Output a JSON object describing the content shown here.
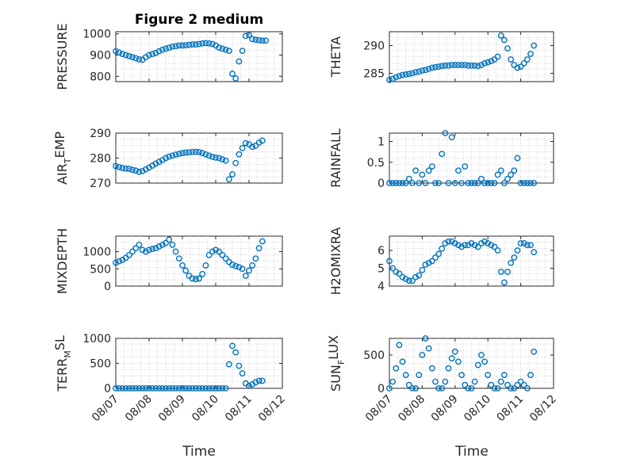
{
  "figure": {
    "title": "Figure 2 medium",
    "marker_color": "#0072BD"
  },
  "chart_data": [
    {
      "type": "scatter",
      "id": "pressure",
      "ylabel": {
        "main": "PRESSURE"
      },
      "ylim": [
        775,
        1010
      ],
      "yticks": [
        800,
        900,
        1000
      ],
      "xlim": [
        "2016-08-07",
        "2016-08-12"
      ],
      "xticks": [
        "08/07",
        "08/08",
        "08/09",
        "08/10",
        "08/11",
        "08/12"
      ],
      "x": [
        0.0,
        0.1,
        0.2,
        0.3,
        0.4,
        0.5,
        0.6,
        0.7,
        0.8,
        0.9,
        1.0,
        1.1,
        1.2,
        1.3,
        1.4,
        1.5,
        1.6,
        1.7,
        1.8,
        1.9,
        2.0,
        2.1,
        2.2,
        2.3,
        2.4,
        2.5,
        2.6,
        2.7,
        2.8,
        2.9,
        3.0,
        3.1,
        3.2,
        3.3,
        3.4,
        3.5,
        3.6,
        3.7,
        3.8,
        3.9,
        4.0,
        4.1,
        4.2,
        4.3,
        4.4,
        4.5
      ],
      "y": [
        918,
        912,
        905,
        900,
        895,
        890,
        885,
        880,
        878,
        890,
        900,
        905,
        910,
        918,
        925,
        930,
        935,
        940,
        942,
        945,
        945,
        946,
        948,
        950,
        950,
        952,
        955,
        956,
        955,
        952,
        945,
        935,
        930,
        925,
        920,
        812,
        790,
        870,
        920,
        990,
        995,
        975,
        972,
        970,
        968,
        968
      ]
    },
    {
      "type": "scatter",
      "id": "theta",
      "ylabel": {
        "main": "THETA"
      },
      "ylim": [
        283.5,
        292.5
      ],
      "yticks": [
        285,
        290
      ],
      "xlim": [
        "2016-08-07",
        "2016-08-12"
      ],
      "xticks": [
        "08/07",
        "08/08",
        "08/09",
        "08/10",
        "08/11",
        "08/12"
      ],
      "x": [
        0.0,
        0.1,
        0.2,
        0.3,
        0.4,
        0.5,
        0.6,
        0.7,
        0.8,
        0.9,
        1.0,
        1.1,
        1.2,
        1.3,
        1.4,
        1.5,
        1.6,
        1.7,
        1.8,
        1.9,
        2.0,
        2.1,
        2.2,
        2.3,
        2.4,
        2.5,
        2.6,
        2.7,
        2.8,
        2.9,
        3.0,
        3.1,
        3.2,
        3.3,
        3.4,
        3.5,
        3.6,
        3.7,
        3.8,
        3.9,
        4.0,
        4.1,
        4.2,
        4.3,
        4.4
      ],
      "y": [
        283.8,
        284.0,
        284.3,
        284.5,
        284.7,
        284.8,
        284.9,
        285.0,
        285.2,
        285.3,
        285.5,
        285.6,
        285.8,
        286.0,
        286.1,
        286.2,
        286.3,
        286.4,
        286.4,
        286.5,
        286.5,
        286.5,
        286.5,
        286.5,
        286.4,
        286.4,
        286.4,
        286.3,
        286.5,
        286.8,
        287.0,
        287.2,
        287.5,
        288.0,
        291.8,
        291.0,
        289.5,
        287.5,
        286.5,
        286.0,
        286.2,
        286.8,
        287.5,
        288.5,
        290.0
      ]
    },
    {
      "type": "scatter",
      "id": "air_temp",
      "ylabel": {
        "main": "AIR",
        "sub": "T",
        "rest": "EMP"
      },
      "ylim": [
        270,
        290
      ],
      "yticks": [
        270,
        280,
        290
      ],
      "xlim": [
        "2016-08-07",
        "2016-08-12"
      ],
      "xticks": [
        "08/07",
        "08/08",
        "08/09",
        "08/10",
        "08/11",
        "08/12"
      ],
      "x": [
        0.0,
        0.1,
        0.2,
        0.3,
        0.4,
        0.5,
        0.6,
        0.7,
        0.8,
        0.9,
        1.0,
        1.1,
        1.2,
        1.3,
        1.4,
        1.5,
        1.6,
        1.7,
        1.8,
        1.9,
        2.0,
        2.1,
        2.2,
        2.3,
        2.4,
        2.5,
        2.6,
        2.7,
        2.8,
        2.9,
        3.0,
        3.1,
        3.2,
        3.3,
        3.4,
        3.5,
        3.6,
        3.7,
        3.8,
        3.9,
        4.0,
        4.1,
        4.2,
        4.3,
        4.4
      ],
      "y": [
        276.8,
        276.4,
        276.0,
        275.8,
        275.7,
        275.3,
        275.0,
        274.5,
        274.8,
        275.5,
        276.2,
        277.0,
        277.8,
        278.5,
        279.2,
        280.0,
        280.6,
        281.0,
        281.4,
        281.7,
        282.0,
        282.2,
        282.3,
        282.5,
        282.5,
        282.4,
        282.0,
        281.5,
        281.0,
        280.5,
        280.2,
        280.0,
        279.5,
        279.0,
        271.5,
        273.5,
        278.0,
        281.5,
        284.0,
        286.0,
        285.5,
        284.5,
        285.0,
        286.2,
        287.0
      ]
    },
    {
      "type": "scatter",
      "id": "rainfall",
      "ylabel": {
        "main": "RAINFALL"
      },
      "ylim": [
        0,
        1.2
      ],
      "yticks": [
        0,
        0.5,
        1
      ],
      "xlim": [
        "2016-08-07",
        "2016-08-12"
      ],
      "xticks": [
        "08/07",
        "08/08",
        "08/09",
        "08/10",
        "08/11",
        "08/12"
      ],
      "x": [
        0.0,
        0.1,
        0.2,
        0.3,
        0.4,
        0.5,
        0.6,
        0.7,
        0.8,
        0.9,
        1.0,
        1.1,
        1.2,
        1.3,
        1.4,
        1.5,
        1.6,
        1.7,
        1.8,
        1.9,
        2.0,
        2.1,
        2.2,
        2.3,
        2.4,
        2.5,
        2.6,
        2.7,
        2.8,
        2.9,
        3.0,
        3.1,
        3.2,
        3.3,
        3.4,
        3.5,
        3.6,
        3.7,
        3.8,
        3.9,
        4.0,
        4.1,
        4.2,
        4.3,
        4.4
      ],
      "y": [
        0.0,
        0.0,
        0.0,
        0.0,
        0.0,
        0.0,
        0.1,
        0.0,
        0.3,
        0.0,
        0.2,
        0.0,
        0.3,
        0.4,
        0.0,
        0.0,
        0.7,
        1.2,
        0.0,
        1.1,
        0.0,
        0.3,
        0.0,
        0.4,
        0.0,
        0.0,
        0.0,
        0.0,
        0.1,
        0.0,
        0.0,
        0.0,
        0.0,
        0.2,
        0.3,
        0.0,
        0.1,
        0.2,
        0.3,
        0.6,
        0.0,
        0.0,
        0.0,
        0.0,
        0.0
      ]
    },
    {
      "type": "scatter",
      "id": "mixdepth",
      "ylabel": {
        "main": "MIXDEPTH"
      },
      "ylim": [
        0,
        1450
      ],
      "yticks": [
        0,
        500,
        1000
      ],
      "xlim": [
        "2016-08-07",
        "2016-08-12"
      ],
      "xticks": [
        "08/07",
        "08/08",
        "08/09",
        "08/10",
        "08/11",
        "08/12"
      ],
      "x": [
        0.0,
        0.1,
        0.2,
        0.3,
        0.4,
        0.5,
        0.6,
        0.7,
        0.8,
        0.9,
        1.0,
        1.1,
        1.2,
        1.3,
        1.4,
        1.5,
        1.6,
        1.7,
        1.8,
        1.9,
        2.0,
        2.1,
        2.2,
        2.3,
        2.4,
        2.5,
        2.6,
        2.7,
        2.8,
        2.9,
        3.0,
        3.1,
        3.2,
        3.3,
        3.4,
        3.5,
        3.6,
        3.7,
        3.8,
        3.9,
        4.0,
        4.1,
        4.2,
        4.3,
        4.4
      ],
      "y": [
        680,
        720,
        760,
        820,
        900,
        1000,
        1100,
        1200,
        1050,
        1000,
        1050,
        1080,
        1100,
        1150,
        1200,
        1250,
        1350,
        1200,
        1000,
        800,
        600,
        450,
        300,
        220,
        200,
        220,
        350,
        600,
        900,
        1000,
        1050,
        1000,
        900,
        800,
        700,
        620,
        580,
        550,
        500,
        300,
        450,
        600,
        800,
        1100,
        1300
      ]
    },
    {
      "type": "scatter",
      "id": "h2omixra",
      "ylabel": {
        "main": "H2OMIXRA"
      },
      "ylim": [
        4,
        6.8
      ],
      "yticks": [
        4,
        5,
        6
      ],
      "xlim": [
        "2016-08-07",
        "2016-08-12"
      ],
      "xticks": [
        "08/07",
        "08/08",
        "08/09",
        "08/10",
        "08/11",
        "08/12"
      ],
      "x": [
        0.0,
        0.1,
        0.2,
        0.3,
        0.4,
        0.5,
        0.6,
        0.7,
        0.8,
        0.9,
        1.0,
        1.1,
        1.2,
        1.3,
        1.4,
        1.5,
        1.6,
        1.7,
        1.8,
        1.9,
        2.0,
        2.1,
        2.2,
        2.3,
        2.4,
        2.5,
        2.6,
        2.7,
        2.8,
        2.9,
        3.0,
        3.1,
        3.2,
        3.3,
        3.4,
        3.5,
        3.6,
        3.7,
        3.8,
        3.9,
        4.0,
        4.1,
        4.2,
        4.3,
        4.4
      ],
      "y": [
        5.4,
        5.0,
        4.8,
        4.7,
        4.5,
        4.4,
        4.3,
        4.3,
        4.5,
        4.6,
        4.9,
        5.2,
        5.3,
        5.4,
        5.6,
        5.8,
        6.1,
        6.4,
        6.5,
        6.5,
        6.4,
        6.3,
        6.2,
        6.3,
        6.3,
        6.4,
        6.3,
        6.2,
        6.4,
        6.5,
        6.4,
        6.3,
        6.2,
        6.0,
        4.8,
        4.2,
        4.8,
        5.3,
        5.6,
        6.0,
        6.4,
        6.4,
        6.3,
        6.3,
        5.9
      ]
    },
    {
      "type": "scatter",
      "id": "terr_msl",
      "ylabel": {
        "main": "TERR",
        "sub": "M",
        "rest": "SL"
      },
      "ylim": [
        0,
        1000
      ],
      "yticks": [
        0,
        500,
        1000
      ],
      "xlim": [
        "2016-08-07",
        "2016-08-12"
      ],
      "xticks": [
        "08/07",
        "08/08",
        "08/09",
        "08/10",
        "08/11",
        "08/12"
      ],
      "x": [
        0.0,
        0.1,
        0.2,
        0.3,
        0.4,
        0.5,
        0.6,
        0.7,
        0.8,
        0.9,
        1.0,
        1.1,
        1.2,
        1.3,
        1.4,
        1.5,
        1.6,
        1.7,
        1.8,
        1.9,
        2.0,
        2.1,
        2.2,
        2.3,
        2.4,
        2.5,
        2.6,
        2.7,
        2.8,
        2.9,
        3.0,
        3.1,
        3.2,
        3.3,
        3.4,
        3.5,
        3.6,
        3.7,
        3.8,
        3.9,
        4.0,
        4.1,
        4.2,
        4.3,
        4.4
      ],
      "y": [
        0,
        0,
        0,
        0,
        0,
        0,
        0,
        0,
        0,
        0,
        0,
        0,
        0,
        0,
        0,
        0,
        0,
        0,
        0,
        0,
        0,
        0,
        0,
        0,
        0,
        0,
        0,
        0,
        0,
        0,
        0,
        0,
        0,
        0,
        480,
        850,
        720,
        450,
        300,
        100,
        50,
        80,
        120,
        150,
        150
      ]
    },
    {
      "type": "scatter",
      "id": "sun_flux",
      "ylabel": {
        "main": "SUN",
        "sub": "F",
        "rest": "LUX"
      },
      "ylim": [
        0,
        750
      ],
      "yticks": [
        0,
        500
      ],
      "xlim": [
        "2016-08-07",
        "2016-08-12"
      ],
      "xticks": [
        "08/07",
        "08/08",
        "08/09",
        "08/10",
        "08/11",
        "08/12"
      ],
      "x": [
        0.0,
        0.1,
        0.2,
        0.3,
        0.4,
        0.5,
        0.6,
        0.7,
        0.8,
        0.9,
        1.0,
        1.1,
        1.2,
        1.3,
        1.4,
        1.5,
        1.6,
        1.7,
        1.8,
        1.9,
        2.0,
        2.1,
        2.2,
        2.3,
        2.4,
        2.5,
        2.6,
        2.7,
        2.8,
        2.9,
        3.0,
        3.1,
        3.2,
        3.3,
        3.4,
        3.5,
        3.6,
        3.7,
        3.8,
        3.9,
        4.0,
        4.1,
        4.2,
        4.3,
        4.4
      ],
      "y": [
        0,
        100,
        300,
        650,
        400,
        200,
        50,
        0,
        0,
        200,
        500,
        750,
        600,
        300,
        100,
        0,
        0,
        100,
        300,
        450,
        550,
        400,
        200,
        50,
        0,
        0,
        100,
        350,
        500,
        400,
        200,
        50,
        0,
        0,
        100,
        200,
        50,
        0,
        0,
        50,
        100,
        50,
        0,
        200,
        550
      ]
    }
  ],
  "xlabel": "Time"
}
